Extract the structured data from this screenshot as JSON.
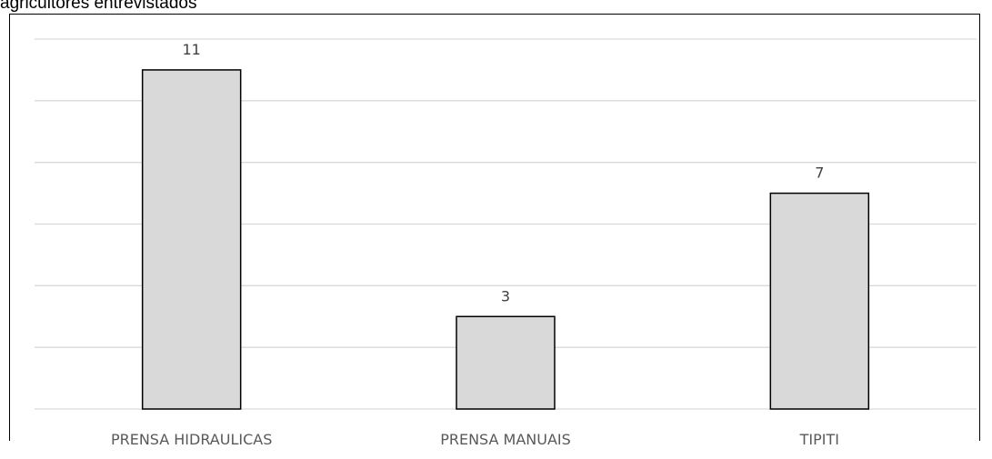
{
  "caption": "agricultores entrevistados",
  "chart_data": {
    "type": "bar",
    "title": "",
    "xlabel": "",
    "ylabel": "",
    "categories": [
      "PRENSA HIDRAULICAS",
      "PRENSA MANUAIS",
      "TIPITI"
    ],
    "values": [
      11,
      3,
      7
    ],
    "data_labels": [
      "11",
      "3",
      "7"
    ],
    "ylim": [
      0,
      12
    ],
    "grid": true,
    "legend": "none",
    "colors": {
      "bar_fill": "#d9d9d9",
      "bar_stroke": "#000000",
      "grid": "#d9d9d9"
    }
  }
}
